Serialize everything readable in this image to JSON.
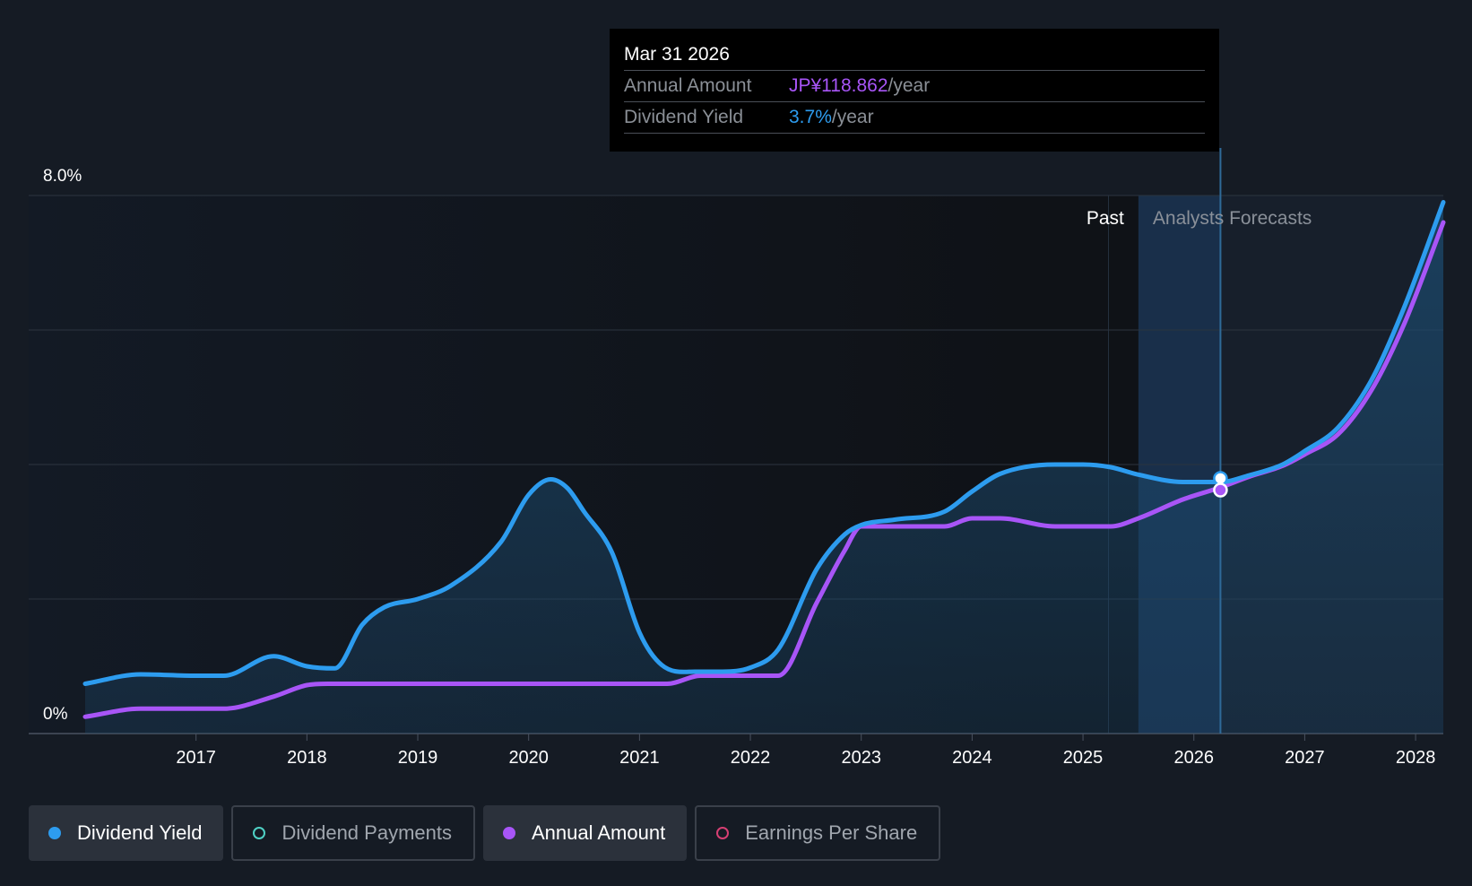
{
  "tooltip": {
    "date": "Mar 31 2026",
    "rows": [
      {
        "label": "Annual Amount",
        "value": "JP¥118.862",
        "unit": "/year"
      },
      {
        "label": "Dividend Yield",
        "value": "3.7%",
        "unit": "/year"
      }
    ]
  },
  "legend": [
    {
      "label": "Dividend Yield",
      "color": "#2d9cef",
      "active": true,
      "filled": true
    },
    {
      "label": "Dividend Payments",
      "color": "#4fd1c5",
      "active": false,
      "filled": false
    },
    {
      "label": "Annual Amount",
      "color": "#a855f7",
      "active": true,
      "filled": true
    },
    {
      "label": "Earnings Per Share",
      "color": "#d63f73",
      "active": false,
      "filled": false
    }
  ],
  "chart_data": {
    "type": "line",
    "y_tick_labels": [
      "8.0%",
      "0%"
    ],
    "ylim": [
      0,
      8
    ],
    "xlim": [
      2016.0,
      2028.25
    ],
    "x_tick_labels": [
      "2017",
      "2018",
      "2019",
      "2020",
      "2021",
      "2022",
      "2023",
      "2024",
      "2025",
      "2026",
      "2027",
      "2028"
    ],
    "x_ticks": [
      2017,
      2018,
      2019,
      2020,
      2021,
      2022,
      2023,
      2024,
      2025,
      2026,
      2027,
      2028
    ],
    "grid": true,
    "past_label": "Past",
    "forecast_label": "Analysts Forecasts",
    "forecast_start": 2025.5,
    "highlight_x": 2026.24,
    "series": [
      {
        "name": "Dividend Yield",
        "color": "#2d9cef",
        "x": [
          2016.0,
          2016.5,
          2017.0,
          2017.25,
          2017.7,
          2018.0,
          2018.25,
          2018.5,
          2018.7,
          2019.0,
          2019.3,
          2019.75,
          2020.0,
          2020.2,
          2020.35,
          2020.5,
          2020.75,
          2021.0,
          2021.2,
          2021.5,
          2021.75,
          2022.0,
          2022.25,
          2022.6,
          2022.85,
          2023.0,
          2023.3,
          2023.75,
          2024.0,
          2024.25,
          2024.75,
          2025.0,
          2025.25,
          2025.5,
          2025.9,
          2026.24,
          2026.5,
          2026.8,
          2027.0,
          2027.3,
          2027.6,
          2027.9,
          2028.25
        ],
        "y": [
          0.74,
          0.88,
          0.86,
          0.86,
          1.15,
          1.0,
          0.97,
          1.62,
          1.88,
          2.0,
          2.2,
          2.85,
          3.55,
          3.78,
          3.65,
          3.3,
          2.7,
          1.5,
          1.02,
          0.92,
          0.92,
          0.98,
          1.25,
          2.45,
          2.96,
          3.1,
          3.18,
          3.3,
          3.6,
          3.86,
          4.0,
          4.0,
          3.96,
          3.85,
          3.74,
          3.74,
          3.84,
          4.0,
          4.2,
          4.55,
          5.25,
          6.35,
          7.9
        ]
      },
      {
        "name": "Annual Amount",
        "color": "#a855f7",
        "x": [
          2016.0,
          2016.5,
          2017.0,
          2017.25,
          2017.7,
          2018.0,
          2018.25,
          2019.0,
          2020.0,
          2021.0,
          2021.25,
          2021.55,
          2022.0,
          2022.25,
          2022.6,
          2022.85,
          2023.0,
          2023.3,
          2023.75,
          2024.0,
          2024.25,
          2024.75,
          2025.0,
          2025.25,
          2025.5,
          2025.9,
          2026.24,
          2026.5,
          2026.8,
          2027.0,
          2027.3,
          2027.6,
          2027.9,
          2028.25
        ],
        "y": [
          0.25,
          0.37,
          0.37,
          0.37,
          0.55,
          0.72,
          0.74,
          0.74,
          0.74,
          0.74,
          0.74,
          0.86,
          0.86,
          0.86,
          1.95,
          2.72,
          3.08,
          3.08,
          3.08,
          3.2,
          3.2,
          3.08,
          3.08,
          3.08,
          3.2,
          3.48,
          3.66,
          3.82,
          3.98,
          4.15,
          4.45,
          5.1,
          6.1,
          7.6
        ]
      }
    ]
  }
}
